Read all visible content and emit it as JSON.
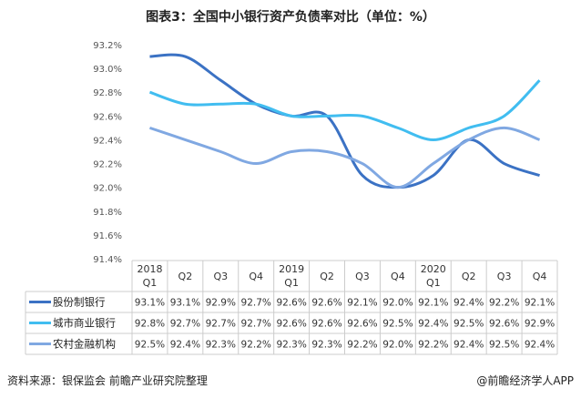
{
  "title": "图表3：全国中小银行资产负债率对比（单位：%）",
  "source": "资料来源：银保监会 前瞻产业研究院整理",
  "brand": "@前瞻经济学人APP",
  "chart_data": {
    "type": "line",
    "title": "图表3：全国中小银行资产负债率对比（单位：%）",
    "unit": "%",
    "ylim": [
      91.4,
      93.2
    ],
    "yticks": [
      "93.2%",
      "93.0%",
      "92.8%",
      "92.6%",
      "92.4%",
      "92.2%",
      "92.0%",
      "91.8%",
      "91.6%",
      "91.4%"
    ],
    "categories": [
      [
        "2018",
        "Q1"
      ],
      [
        "Q2"
      ],
      [
        "Q3"
      ],
      [
        "Q4"
      ],
      [
        "2019",
        "Q1"
      ],
      [
        "Q2"
      ],
      [
        "Q3"
      ],
      [
        "Q4"
      ],
      [
        "2020",
        "Q1"
      ],
      [
        "Q2"
      ],
      [
        "Q3"
      ],
      [
        "Q4"
      ]
    ],
    "grid": false,
    "legend": "table-bottom",
    "series": [
      {
        "name": "股份制银行",
        "color": "#3b72c4",
        "values": [
          93.1,
          93.1,
          92.9,
          92.7,
          92.6,
          92.6,
          92.1,
          92.0,
          92.1,
          92.4,
          92.2,
          92.1
        ]
      },
      {
        "name": "城市商业银行",
        "color": "#41bdf0",
        "values": [
          92.8,
          92.7,
          92.7,
          92.7,
          92.6,
          92.6,
          92.6,
          92.5,
          92.4,
          92.5,
          92.6,
          92.9
        ]
      },
      {
        "name": "农村金融机构",
        "color": "#80a8e2",
        "values": [
          92.5,
          92.4,
          92.3,
          92.2,
          92.3,
          92.3,
          92.2,
          92.0,
          92.2,
          92.4,
          92.5,
          92.4
        ]
      }
    ]
  }
}
